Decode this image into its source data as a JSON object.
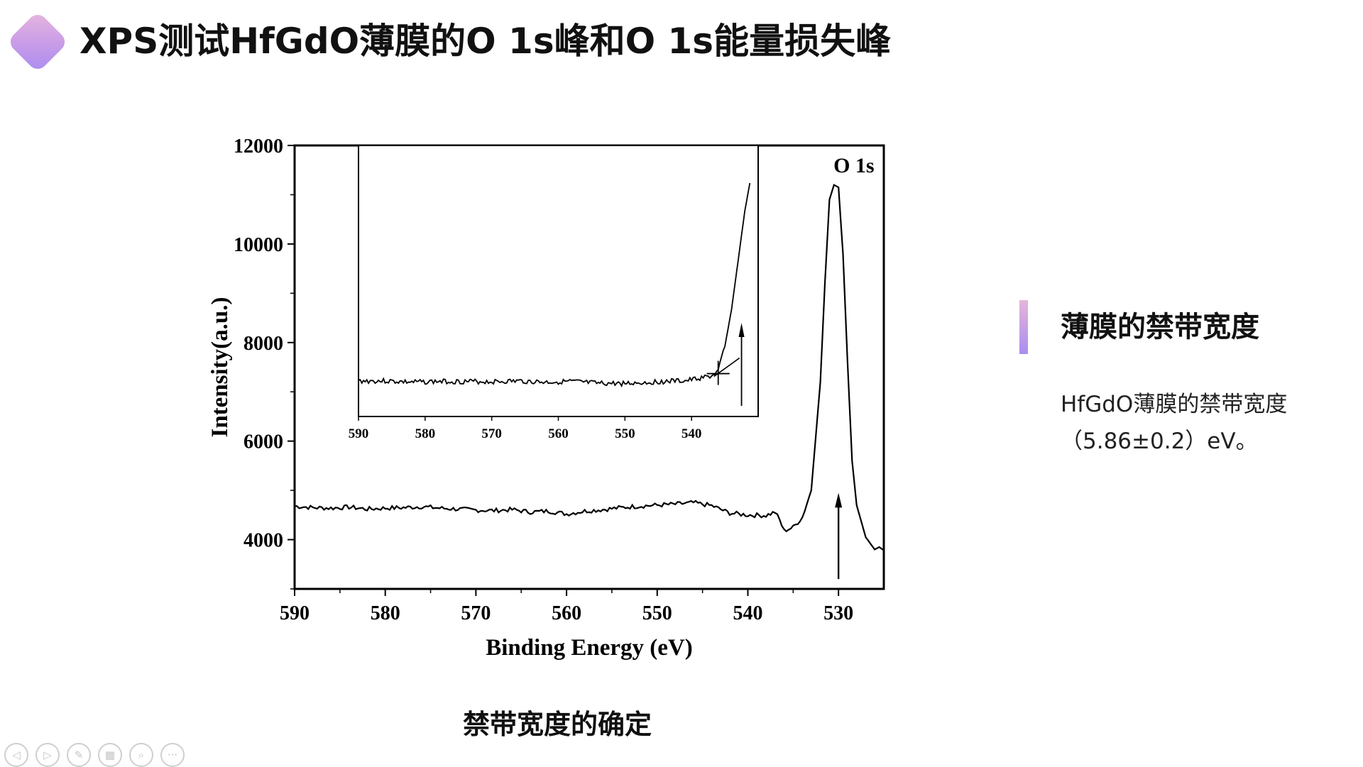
{
  "header": {
    "title": "XPS测试HfGdO薄膜的O 1s峰和O 1s能量损失峰"
  },
  "caption": "禁带宽度的确定",
  "sidebar": {
    "heading": "薄膜的禁带宽度",
    "line1": "HfGdO薄膜的禁带宽度",
    "line2": "（5.86±0.2）eV。"
  },
  "nav": {
    "icons": [
      "prev-icon",
      "next-icon",
      "pen-icon",
      "slides-icon",
      "zoom-icon",
      "more-icon"
    ],
    "glyphs": [
      "◁",
      "▷",
      "✎",
      "▦",
      "⌕",
      "···"
    ]
  },
  "chart_data": {
    "type": "line",
    "xlabel": "Binding Energy (eV)",
    "ylabel": "Intensity(a.u.)",
    "xlim": [
      590,
      525
    ],
    "ylim": [
      3000,
      12000
    ],
    "xticks": [
      590,
      580,
      570,
      560,
      550,
      540,
      530
    ],
    "yticks": [
      4000,
      6000,
      8000,
      10000,
      12000
    ],
    "peak_label": "O 1s",
    "series": [
      {
        "x": [
          590,
          588,
          586,
          584,
          582,
          580,
          578,
          576,
          574,
          572,
          570,
          568,
          566,
          564,
          562,
          560,
          558,
          556,
          554,
          552,
          550,
          548,
          546,
          544,
          542,
          540,
          538,
          537,
          536.5,
          536,
          535,
          534,
          533,
          532,
          531.5,
          531,
          530.5,
          530,
          529.5,
          529,
          528.5,
          528,
          527,
          526,
          525.5,
          525
        ],
        "y": [
          4680,
          4650,
          4640,
          4660,
          4620,
          4640,
          4650,
          4670,
          4640,
          4620,
          4600,
          4590,
          4610,
          4560,
          4580,
          4520,
          4580,
          4610,
          4650,
          4680,
          4700,
          4720,
          4750,
          4690,
          4540,
          4500,
          4490,
          4560,
          4400,
          4180,
          4250,
          4450,
          5000,
          7200,
          9200,
          10900,
          11200,
          11150,
          9800,
          7600,
          5600,
          4700,
          4050,
          3800,
          3850,
          3780
        ]
      }
    ],
    "inset": {
      "xlim": [
        590,
        530
      ],
      "xticks": [
        590,
        580,
        570,
        560,
        550,
        540
      ],
      "x": [
        590,
        586,
        582,
        578,
        574,
        570,
        566,
        562,
        558,
        554,
        550,
        546,
        543,
        541,
        539,
        537,
        536,
        535,
        534,
        533,
        532,
        531
      ],
      "y": [
        0.84,
        0.84,
        0.845,
        0.842,
        0.842,
        0.843,
        0.84,
        0.845,
        0.842,
        0.85,
        0.85,
        0.845,
        0.84,
        0.84,
        0.83,
        0.82,
        0.8,
        0.7,
        0.55,
        0.35,
        0.15,
        0.0
      ],
      "marker_x": 536
    }
  }
}
